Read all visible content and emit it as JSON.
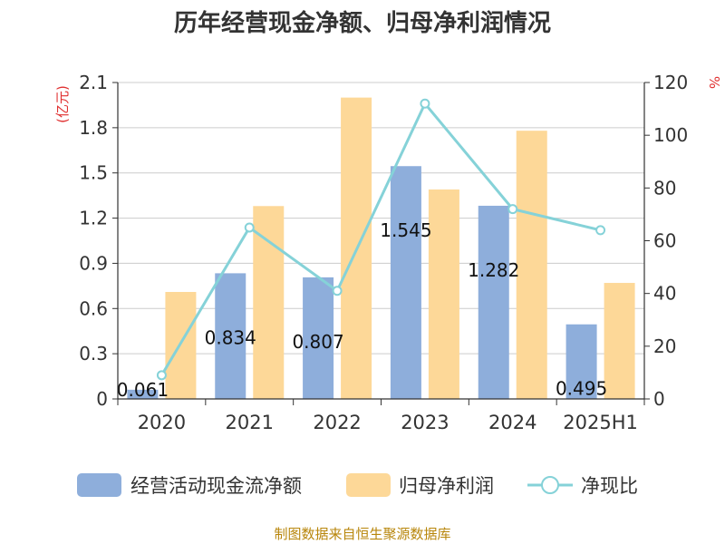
{
  "chart_data": {
    "type": "bar",
    "title": "历年经营现金净额、归母净利润情况",
    "categories": [
      "2020",
      "2021",
      "2022",
      "2023",
      "2024",
      "2025H1"
    ],
    "y_left": {
      "unit": "(亿元)",
      "lim": [
        0,
        2.1
      ],
      "ticks": [
        "0",
        "0.3",
        "0.6",
        "0.9",
        "1.2",
        "1.5",
        "1.8",
        "2.1"
      ]
    },
    "y_right": {
      "unit": "%",
      "lim": [
        0,
        120
      ],
      "ticks": [
        "0",
        "20",
        "40",
        "60",
        "80",
        "100",
        "120"
      ]
    },
    "series": [
      {
        "name": "经营活动现金流净额",
        "kind": "bar",
        "axis": "left",
        "color": "#8eaedb",
        "values": [
          0.061,
          0.834,
          0.807,
          1.545,
          1.282,
          0.495
        ],
        "labels": [
          "0.061",
          "0.834",
          "0.807",
          "1.545",
          "1.282",
          "0.495"
        ]
      },
      {
        "name": "归母净利润",
        "kind": "bar",
        "axis": "left",
        "color": "#fdd898",
        "values": [
          0.71,
          1.28,
          2.0,
          1.39,
          1.78,
          0.77
        ]
      },
      {
        "name": "净现比",
        "kind": "line",
        "axis": "right",
        "color": "#85d2d8",
        "values": [
          9,
          65,
          41,
          112,
          72,
          64
        ]
      }
    ],
    "grid": true,
    "legend": "bottom"
  },
  "source": "制图数据来自恒生聚源数据库"
}
